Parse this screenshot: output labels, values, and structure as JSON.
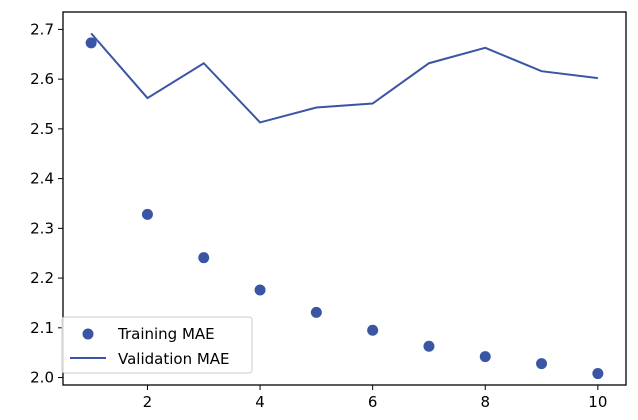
{
  "chart_data": {
    "type": "line",
    "title": "",
    "xlabel": "",
    "ylabel": "",
    "xlim": [
      0.5,
      10.5
    ],
    "ylim": [
      1.985,
      2.735
    ],
    "xticks": [
      2,
      4,
      6,
      8,
      10
    ],
    "yticks": [
      2.0,
      2.1,
      2.2,
      2.3,
      2.4,
      2.5,
      2.6,
      2.7
    ],
    "grid": false,
    "legend_position": "lower-left",
    "series": [
      {
        "name": "Training MAE",
        "style": "scatter",
        "color": "#3a55a4",
        "x": [
          1,
          2,
          3,
          4,
          5,
          6,
          7,
          8,
          9,
          10
        ],
        "y": [
          2.673,
          2.328,
          2.241,
          2.176,
          2.131,
          2.095,
          2.063,
          2.042,
          2.028,
          2.008
        ]
      },
      {
        "name": "Validation MAE",
        "style": "line",
        "color": "#3a55a4",
        "x": [
          1,
          2,
          3,
          4,
          5,
          6,
          7,
          8,
          9,
          10
        ],
        "y": [
          2.692,
          2.562,
          2.632,
          2.513,
          2.543,
          2.551,
          2.632,
          2.663,
          2.616,
          2.602
        ]
      }
    ]
  }
}
